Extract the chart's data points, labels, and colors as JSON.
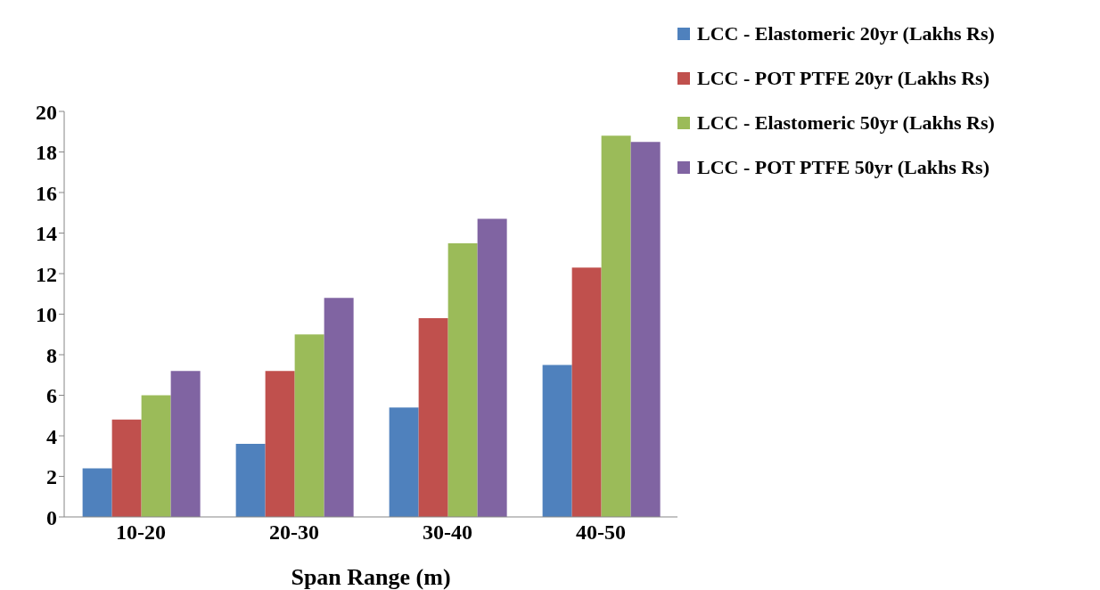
{
  "chart_data": {
    "type": "bar",
    "xlabel": "Span Range (m)",
    "categories": [
      "10-20",
      "20-30",
      "30-40",
      "40-50"
    ],
    "series": [
      {
        "name": "LCC - Elastomeric 20yr (Lakhs Rs)",
        "color": "#4f81bd",
        "values": [
          2.4,
          3.6,
          5.4,
          7.5
        ]
      },
      {
        "name": "LCC - POT PTFE 20yr (Lakhs Rs)",
        "color": "#c0504d",
        "values": [
          4.8,
          7.2,
          9.8,
          12.3
        ]
      },
      {
        "name": "LCC - Elastomeric 50yr (Lakhs Rs)",
        "color": "#9bbb59",
        "values": [
          6.0,
          9.0,
          13.5,
          18.8
        ]
      },
      {
        "name": "LCC - POT PTFE 50yr (Lakhs Rs)",
        "color": "#8064a2",
        "values": [
          7.2,
          10.8,
          14.7,
          18.5
        ]
      }
    ],
    "ylim": [
      0,
      20
    ],
    "yticks": [
      0,
      2,
      4,
      6,
      8,
      10,
      12,
      14,
      16,
      18,
      20
    ],
    "grid": false,
    "legend": "top right"
  }
}
